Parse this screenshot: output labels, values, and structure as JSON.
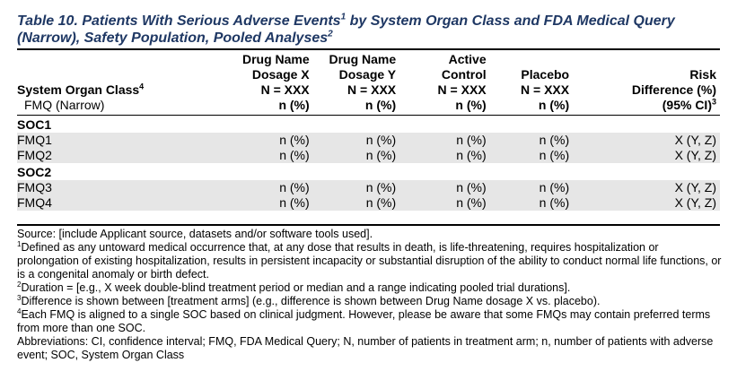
{
  "title": {
    "line1": "Table 10. Patients With Serious Adverse Events",
    "line1_sup": "1",
    "line1_rest": " by System Organ Class and FDA Medical Query",
    "line2": "(Narrow), Safety Population, Pooled Analyses",
    "line2_sup": "2"
  },
  "header": {
    "col0": {
      "line1": "System Organ Class",
      "line1_sup": "4",
      "line2": "FMQ (Narrow)"
    },
    "col1": {
      "line1": "Drug Name",
      "line2": "Dosage X",
      "line3": "N = XXX",
      "line4": "n (%)"
    },
    "col2": {
      "line1": "Drug Name",
      "line2": "Dosage Y",
      "line3": "N = XXX",
      "line4": "n (%)"
    },
    "col3": {
      "line1": "Active",
      "line2": "Control",
      "line3": "N = XXX",
      "line4": "n (%)"
    },
    "col4": {
      "line1": "Placebo",
      "line2": "N = XXX",
      "line3": "n (%)"
    },
    "col5": {
      "line1": "Risk",
      "line2": "Difference (%)",
      "line3": "(95% CI)",
      "line3_sup": "3"
    }
  },
  "groups": [
    {
      "soc": "SOC1",
      "rows": [
        {
          "fmq": "FMQ1",
          "v1": "n (%)",
          "v2": "n (%)",
          "v3": "n (%)",
          "v4": "n (%)",
          "v5": "X (Y, Z)"
        },
        {
          "fmq": "FMQ2",
          "v1": "n (%)",
          "v2": "n (%)",
          "v3": "n (%)",
          "v4": "n (%)",
          "v5": "X (Y, Z)"
        }
      ]
    },
    {
      "soc": "SOC2",
      "rows": [
        {
          "fmq": "FMQ3",
          "v1": "n (%)",
          "v2": "n (%)",
          "v3": "n (%)",
          "v4": "n (%)",
          "v5": "X (Y, Z)"
        },
        {
          "fmq": "FMQ4",
          "v1": "n (%)",
          "v2": "n (%)",
          "v3": "n (%)",
          "v4": "n (%)",
          "v5": "X (Y, Z)"
        }
      ]
    }
  ],
  "footer": {
    "source": "Source: [include Applicant source, datasets and/or software tools used].",
    "fn1_mark": "1",
    "fn1": "Defined as any untoward medical occurrence that, at any dose that results in death, is life-threatening, requires hospitalization or prolongation of existing hospitalization, results in persistent incapacity or substantial disruption of the ability to conduct normal life functions, or is a congenital anomaly or birth defect.",
    "fn2_mark": "2",
    "fn2": "Duration = [e.g., X week double-blind treatment period or median and a range indicating pooled trial durations].",
    "fn3_mark": "3",
    "fn3": "Difference is shown between [treatment arms] (e.g., difference is shown between Drug Name dosage X vs. placebo).",
    "fn4_mark": "4",
    "fn4": "Each FMQ is aligned to a single SOC based on clinical judgment. However, please be aware that some FMQs may contain preferred terms from more than one SOC.",
    "abbrev": "Abbreviations: CI, confidence interval; FMQ, FDA Medical Query; N, number of patients in treatment arm; n, number of patients with adverse event; SOC, System Organ Class"
  }
}
